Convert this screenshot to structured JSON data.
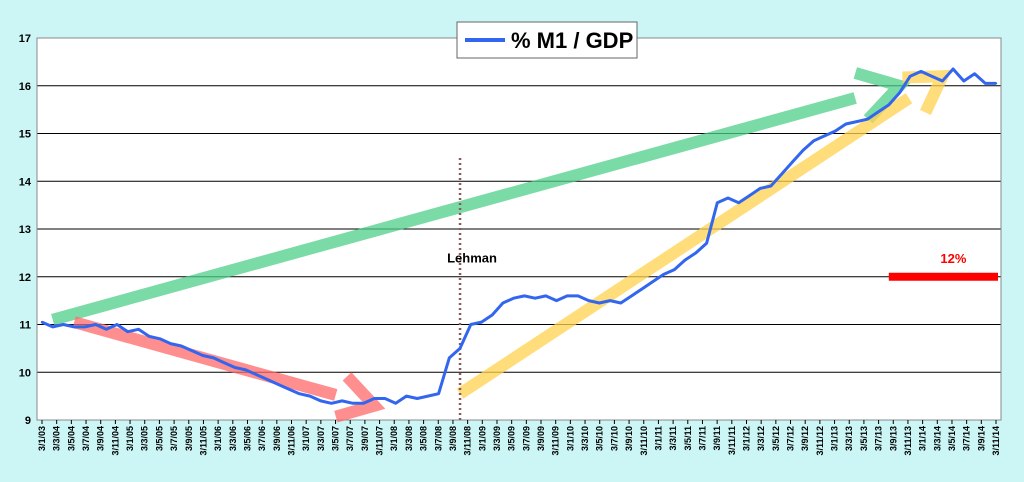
{
  "chart_data": {
    "type": "line",
    "title": "",
    "xlabel": "",
    "ylabel": "",
    "ylim": [
      9,
      17
    ],
    "yticks": [
      9,
      10,
      11,
      12,
      13,
      14,
      15,
      16,
      17
    ],
    "grid": true,
    "legend_position": "top-center",
    "x_tick_labels": [
      "3/1/03",
      "3/3/04",
      "3/5/04",
      "3/7/04",
      "3/9/04",
      "3/11/04",
      "3/1/05",
      "3/3/05",
      "3/5/05",
      "3/7/05",
      "3/9/05",
      "3/11/05",
      "3/1/06",
      "3/3/06",
      "3/5/06",
      "3/7/06",
      "3/9/06",
      "3/11/06",
      "3/1/07",
      "3/3/07",
      "3/5/07",
      "3/7/07",
      "3/9/07",
      "3/11/07",
      "3/1/08",
      "3/3/08",
      "3/5/08",
      "3/7/08",
      "3/9/08",
      "3/11/08",
      "3/1/09",
      "3/3/09",
      "3/5/09",
      "3/7/09",
      "3/9/09",
      "3/11/09",
      "3/1/10",
      "3/3/10",
      "3/5/10",
      "3/7/10",
      "3/9/10",
      "3/11/10",
      "3/1/11",
      "3/3/11",
      "3/5/11",
      "3/7/11",
      "3/9/11",
      "3/11/11",
      "3/1/12",
      "3/3/12",
      "3/5/12",
      "3/7/12",
      "3/9/12",
      "3/11/12",
      "3/1/13",
      "3/3/13",
      "3/5/13",
      "3/7/13",
      "3/9/13",
      "3/11/13",
      "3/1/14",
      "3/3/14",
      "3/5/14",
      "3/7/14",
      "3/9/14",
      "3/11/14"
    ],
    "series": [
      {
        "name": "% M1 / GDP",
        "color": "#3366ee",
        "points": [
          [
            0,
            11.05
          ],
          [
            1,
            10.95
          ],
          [
            2,
            11.0
          ],
          [
            3,
            10.95
          ],
          [
            4,
            10.95
          ],
          [
            5,
            11.0
          ],
          [
            6,
            10.9
          ],
          [
            7,
            11.0
          ],
          [
            8,
            10.85
          ],
          [
            9,
            10.9
          ],
          [
            10,
            10.75
          ],
          [
            11,
            10.7
          ],
          [
            12,
            10.6
          ],
          [
            13,
            10.55
          ],
          [
            14,
            10.45
          ],
          [
            15,
            10.35
          ],
          [
            16,
            10.3
          ],
          [
            17,
            10.2
          ],
          [
            18,
            10.1
          ],
          [
            19,
            10.05
          ],
          [
            20,
            9.95
          ],
          [
            21,
            9.85
          ],
          [
            22,
            9.75
          ],
          [
            23,
            9.65
          ],
          [
            24,
            9.55
          ],
          [
            25,
            9.5
          ],
          [
            26,
            9.4
          ],
          [
            27,
            9.35
          ],
          [
            28,
            9.4
          ],
          [
            29,
            9.35
          ],
          [
            30,
            9.35
          ],
          [
            31,
            9.45
          ],
          [
            32,
            9.45
          ],
          [
            33,
            9.35
          ],
          [
            34,
            9.5
          ],
          [
            35,
            9.45
          ],
          [
            36,
            9.5
          ],
          [
            37,
            9.55
          ],
          [
            38,
            10.3
          ],
          [
            39,
            10.5
          ],
          [
            40,
            11.0
          ],
          [
            41,
            11.05
          ],
          [
            42,
            11.2
          ],
          [
            43,
            11.45
          ],
          [
            44,
            11.55
          ],
          [
            45,
            11.6
          ],
          [
            46,
            11.55
          ],
          [
            47,
            11.6
          ],
          [
            48,
            11.5
          ],
          [
            49,
            11.6
          ],
          [
            50,
            11.6
          ],
          [
            51,
            11.5
          ],
          [
            52,
            11.45
          ],
          [
            53,
            11.5
          ],
          [
            54,
            11.45
          ],
          [
            55,
            11.6
          ],
          [
            56,
            11.75
          ],
          [
            57,
            11.9
          ],
          [
            58,
            12.05
          ],
          [
            59,
            12.15
          ],
          [
            60,
            12.35
          ],
          [
            61,
            12.5
          ],
          [
            62,
            12.7
          ],
          [
            63,
            13.55
          ],
          [
            64,
            13.65
          ],
          [
            65,
            13.55
          ],
          [
            66,
            13.7
          ],
          [
            67,
            13.85
          ],
          [
            68,
            13.9
          ],
          [
            69,
            14.15
          ],
          [
            70,
            14.4
          ],
          [
            71,
            14.65
          ],
          [
            72,
            14.85
          ],
          [
            73,
            14.95
          ],
          [
            74,
            15.05
          ],
          [
            75,
            15.2
          ],
          [
            76,
            15.25
          ],
          [
            77,
            15.3
          ],
          [
            78,
            15.45
          ],
          [
            79,
            15.6
          ],
          [
            80,
            15.85
          ],
          [
            81,
            16.2
          ],
          [
            82,
            16.3
          ],
          [
            83,
            16.2
          ],
          [
            84,
            16.1
          ],
          [
            85,
            16.35
          ],
          [
            86,
            16.1
          ],
          [
            87,
            16.25
          ],
          [
            88,
            16.05
          ],
          [
            89,
            16.05
          ]
        ]
      }
    ],
    "annotations": {
      "lehman_label": "Lehman",
      "lehman_x": 39,
      "level_label": "12%",
      "level_value": 12,
      "level_x_range": [
        79,
        89
      ],
      "trend_green": [
        [
          1,
          11.1
        ],
        [
          80,
          16.0
        ]
      ],
      "trend_red": [
        [
          3,
          11.05
        ],
        [
          31,
          9.3
        ]
      ],
      "trend_yellow": [
        [
          39,
          9.55
        ],
        [
          84,
          16.2
        ]
      ]
    }
  }
}
